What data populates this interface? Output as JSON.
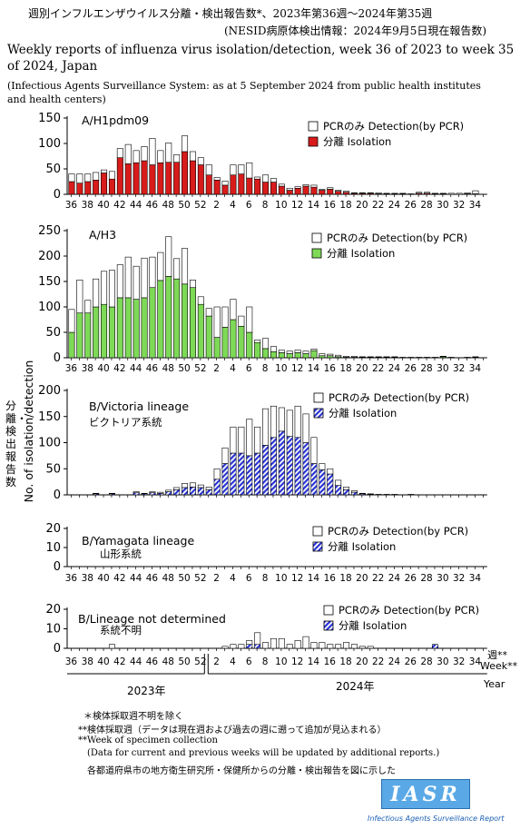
{
  "header": {
    "title_ja": "週別インフルエンザウイルス分離・検出報告数*、2023年第36週〜2024年第35週",
    "subtitle_ja": "(NESID病原体検出情報：2024年9月5日現在報告数)",
    "title_en_line1": "Weekly reports of influenza virus isolation/detection, week 36 of 2023 to week 35",
    "title_en_line2": "of 2024, Japan",
    "source_line1": "(Infectious Agents Surveillance System: as at 5 September 2024 from public health institutes",
    "source_line2": " and health centers)"
  },
  "yaxis_ja": "分離・検出報告数",
  "yaxis_en": "No. of isolation/detection",
  "xaxis": {
    "label_ja": "週**",
    "label_en": "Week**",
    "label_year": "Year",
    "year_2023": "2023年",
    "year_2024": "2024年"
  },
  "legend": {
    "pcr_only_label": "PCRのみ",
    "pcr_only_en": "Detection(by PCR)",
    "isolation_label": "分離",
    "isolation_en": "Isolation"
  },
  "footnotes": {
    "line1": "＊検体採取週不明を除く",
    "line2": "**検体採取週（データは現在週および過去の週に遡って追加が見込まれる）",
    "line3": "**Week of specimen collection",
    "line4": "(Data for current and previous weeks will be updated  by additional reports.)",
    "line5": "各都道府県市の地方衛生研究所・保健所からの分離・検出報告を図に示した"
  },
  "logo": {
    "text": "IASR",
    "caption": "Infectious Agents Surveillance Report"
  },
  "colors": {
    "h1_isolation": "#d81b1b",
    "h3_isolation": "#7ed957",
    "bvic_isolation": "#2a34d4",
    "pcr_only": "#ffffff"
  },
  "chart_data": [
    {
      "type": "bar",
      "stacked": true,
      "title": "A/H1pdm09",
      "ylim": [
        0,
        150
      ],
      "yticks": [
        0,
        50,
        100,
        150
      ],
      "x": [
        36,
        37,
        38,
        39,
        40,
        41,
        42,
        43,
        44,
        45,
        46,
        47,
        48,
        49,
        50,
        51,
        52,
        1,
        2,
        3,
        4,
        5,
        6,
        7,
        8,
        9,
        10,
        11,
        12,
        13,
        14,
        15,
        16,
        17,
        18,
        19,
        20,
        21,
        22,
        23,
        24,
        25,
        26,
        27,
        28,
        29,
        30,
        31,
        32,
        33,
        34,
        35
      ],
      "series": [
        {
          "name": "分離 Isolation",
          "values": [
            25,
            22,
            25,
            28,
            42,
            30,
            72,
            60,
            62,
            66,
            58,
            62,
            63,
            63,
            84,
            66,
            58,
            38,
            28,
            18,
            38,
            40,
            32,
            30,
            24,
            24,
            16,
            8,
            12,
            16,
            14,
            8,
            10,
            6,
            4,
            2,
            2,
            2,
            1,
            1,
            1,
            1,
            0,
            2,
            2,
            1,
            1,
            0,
            0,
            1,
            1,
            0
          ]
        },
        {
          "name": "PCRのみ Detection(by PCR)",
          "values": [
            15,
            18,
            15,
            15,
            6,
            15,
            18,
            38,
            24,
            28,
            52,
            24,
            38,
            15,
            31,
            18,
            14,
            20,
            5,
            8,
            20,
            18,
            30,
            4,
            14,
            7,
            4,
            4,
            3,
            3,
            4,
            2,
            3,
            2,
            2,
            1,
            1,
            1,
            2,
            1,
            1,
            1,
            1,
            2,
            2,
            1,
            1,
            2,
            2,
            2,
            6,
            0
          ]
        }
      ]
    },
    {
      "type": "bar",
      "stacked": true,
      "title": "A/H3",
      "ylim": [
        0,
        250
      ],
      "yticks": [
        0,
        50,
        100,
        150,
        200,
        250
      ],
      "x": [
        36,
        37,
        38,
        39,
        40,
        41,
        42,
        43,
        44,
        45,
        46,
        47,
        48,
        49,
        50,
        51,
        52,
        1,
        2,
        3,
        4,
        5,
        6,
        7,
        8,
        9,
        10,
        11,
        12,
        13,
        14,
        15,
        16,
        17,
        18,
        19,
        20,
        21,
        22,
        23,
        24,
        25,
        26,
        27,
        28,
        29,
        30,
        31,
        32,
        33,
        34,
        35
      ],
      "series": [
        {
          "name": "分離 Isolation",
          "values": [
            50,
            88,
            88,
            100,
            105,
            100,
            118,
            118,
            115,
            118,
            138,
            152,
            160,
            155,
            145,
            138,
            105,
            82,
            40,
            60,
            75,
            62,
            50,
            30,
            18,
            12,
            10,
            8,
            10,
            8,
            14,
            4,
            4,
            2,
            1,
            1,
            1,
            1,
            1,
            1,
            1,
            0,
            0,
            0,
            0,
            0,
            2,
            0,
            0,
            0,
            1,
            0
          ]
        },
        {
          "name": "PCRのみ Detection(by PCR)",
          "values": [
            45,
            65,
            25,
            55,
            65,
            72,
            65,
            80,
            65,
            78,
            60,
            55,
            78,
            40,
            70,
            15,
            15,
            15,
            60,
            40,
            40,
            20,
            50,
            5,
            20,
            10,
            5,
            5,
            5,
            5,
            3,
            4,
            3,
            3,
            2,
            2,
            1,
            1,
            1,
            1,
            1,
            1,
            1,
            1,
            1,
            1,
            1,
            1,
            0,
            1,
            1,
            0
          ]
        }
      ]
    },
    {
      "type": "bar",
      "stacked": true,
      "title": "B/Victoria lineage",
      "subtitle": "ビクトリア系統",
      "ylim": [
        0,
        200
      ],
      "yticks": [
        0,
        50,
        100,
        150,
        200
      ],
      "x": [
        36,
        37,
        38,
        39,
        40,
        41,
        42,
        43,
        44,
        45,
        46,
        47,
        48,
        49,
        50,
        51,
        52,
        1,
        2,
        3,
        4,
        5,
        6,
        7,
        8,
        9,
        10,
        11,
        12,
        13,
        14,
        15,
        16,
        17,
        18,
        19,
        20,
        21,
        22,
        23,
        24,
        25,
        26,
        27,
        28,
        29,
        30,
        31,
        32,
        33,
        34,
        35
      ],
      "series": [
        {
          "name": "分離 Isolation",
          "values": [
            0,
            0,
            0,
            2,
            0,
            2,
            0,
            0,
            4,
            2,
            4,
            3,
            6,
            10,
            14,
            15,
            14,
            10,
            30,
            60,
            80,
            80,
            75,
            80,
            95,
            110,
            122,
            112,
            110,
            100,
            60,
            48,
            40,
            18,
            10,
            5,
            2,
            1,
            0,
            0,
            0,
            0,
            0,
            0,
            0,
            0,
            0,
            0,
            0,
            0,
            0,
            0
          ]
        },
        {
          "name": "PCRのみ Detection(by PCR)",
          "values": [
            0,
            0,
            0,
            1,
            0,
            1,
            0,
            0,
            2,
            1,
            2,
            2,
            3,
            4,
            8,
            8,
            5,
            5,
            20,
            30,
            50,
            50,
            70,
            50,
            70,
            60,
            45,
            50,
            60,
            55,
            50,
            12,
            10,
            10,
            5,
            3,
            1,
            1,
            1,
            1,
            1,
            0,
            1,
            0,
            0,
            0,
            0,
            0,
            0,
            0,
            0,
            0
          ]
        }
      ]
    },
    {
      "type": "bar",
      "stacked": true,
      "title": "B/Yamagata lineage",
      "subtitle": "山形系統",
      "ylim": [
        0,
        20
      ],
      "yticks": [
        0,
        10,
        20
      ],
      "x": [
        36,
        37,
        38,
        39,
        40,
        41,
        42,
        43,
        44,
        45,
        46,
        47,
        48,
        49,
        50,
        51,
        52,
        1,
        2,
        3,
        4,
        5,
        6,
        7,
        8,
        9,
        10,
        11,
        12,
        13,
        14,
        15,
        16,
        17,
        18,
        19,
        20,
        21,
        22,
        23,
        24,
        25,
        26,
        27,
        28,
        29,
        30,
        31,
        32,
        33,
        34,
        35
      ],
      "series": [
        {
          "name": "分離 Isolation",
          "values": [
            0,
            0,
            0,
            0,
            0,
            0,
            0,
            0,
            0,
            0,
            0,
            0,
            0,
            0,
            0,
            0,
            0,
            0,
            0,
            0,
            0,
            0,
            0,
            0,
            0,
            0,
            0,
            0,
            0,
            0,
            0,
            0,
            0,
            0,
            0,
            0,
            0,
            0,
            0,
            0,
            0,
            0,
            0,
            0,
            0,
            0,
            0,
            0,
            0,
            0,
            0,
            0
          ]
        },
        {
          "name": "PCRのみ Detection(by PCR)",
          "values": [
            0,
            0,
            0,
            0,
            0,
            0,
            0,
            0,
            0,
            0,
            0,
            0,
            0,
            0,
            0,
            0,
            0,
            0,
            0,
            0,
            0,
            0,
            0,
            0,
            0,
            0,
            0,
            0,
            0,
            0,
            0,
            0,
            0,
            0,
            0,
            0,
            0,
            0,
            0,
            0,
            0,
            0,
            0,
            0,
            0,
            0,
            0,
            0,
            0,
            0,
            0,
            0
          ]
        }
      ]
    },
    {
      "type": "bar",
      "stacked": true,
      "title": "B/Lineage not determined",
      "subtitle": "系統不明",
      "ylim": [
        0,
        20
      ],
      "yticks": [
        0,
        10,
        20
      ],
      "x": [
        36,
        37,
        38,
        39,
        40,
        41,
        42,
        43,
        44,
        45,
        46,
        47,
        48,
        49,
        50,
        51,
        52,
        1,
        2,
        3,
        4,
        5,
        6,
        7,
        8,
        9,
        10,
        11,
        12,
        13,
        14,
        15,
        16,
        17,
        18,
        19,
        20,
        21,
        22,
        23,
        24,
        25,
        26,
        27,
        28,
        29,
        30,
        31,
        32,
        33,
        34,
        35
      ],
      "series": [
        {
          "name": "分離 Isolation",
          "values": [
            0,
            0,
            0,
            0,
            0,
            0,
            0,
            0,
            0,
            0,
            0,
            0,
            0,
            0,
            0,
            0,
            0,
            0,
            0,
            0,
            0,
            0,
            2,
            2,
            0,
            0,
            0,
            0,
            0,
            0,
            0,
            0,
            0,
            0,
            0,
            0,
            0,
            0,
            0,
            0,
            0,
            0,
            0,
            0,
            0,
            2,
            0,
            0,
            0,
            0,
            0,
            0
          ]
        },
        {
          "name": "PCRのみ Detection(by PCR)",
          "values": [
            0,
            0,
            0,
            0,
            0,
            2,
            0,
            0,
            0,
            0,
            0,
            0,
            0,
            0,
            0,
            0,
            0,
            0,
            0,
            1,
            2,
            2,
            2,
            6,
            3,
            5,
            5,
            2,
            4,
            6,
            3,
            3,
            2,
            2,
            3,
            2,
            1,
            1,
            0,
            0,
            0,
            0,
            0,
            0,
            0,
            0,
            0,
            0,
            0,
            0,
            0,
            0
          ]
        }
      ]
    }
  ]
}
